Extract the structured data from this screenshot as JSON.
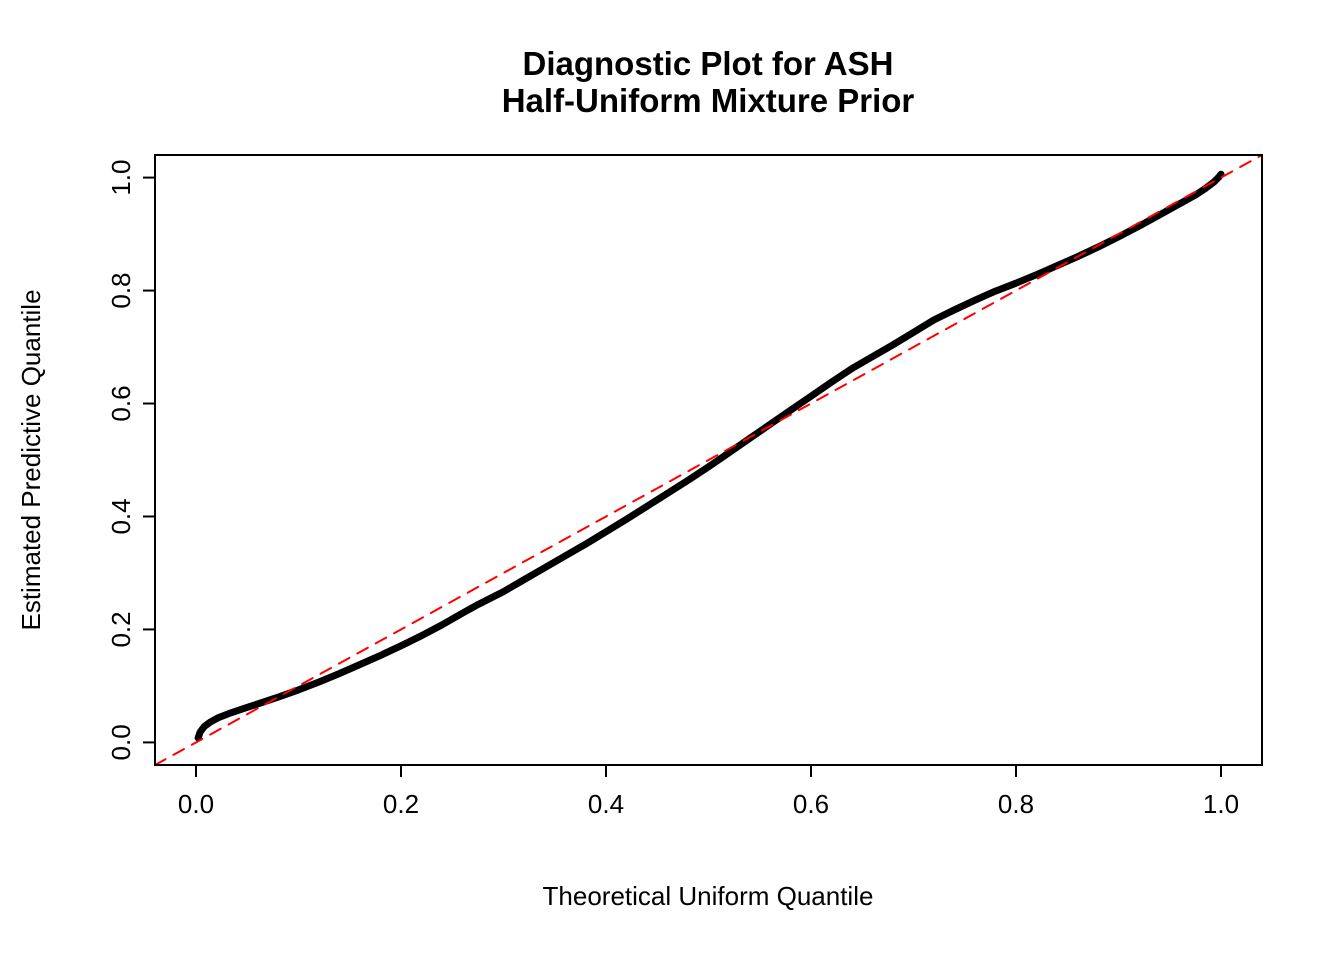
{
  "title": {
    "line1": "Diagnostic Plot for ASH",
    "line2": "Half-Uniform Mixture Prior"
  },
  "chart_data": {
    "type": "line",
    "title": "Diagnostic Plot for ASH\nHalf-Uniform Mixture Prior",
    "xlabel": "Theoretical Uniform Quantile",
    "ylabel": "Estimated Predictive Quantile",
    "xlim": [
      -0.04,
      1.04
    ],
    "ylim": [
      -0.04,
      1.04
    ],
    "grid": false,
    "legend": "none",
    "x_ticks": {
      "values": [
        0.0,
        0.2,
        0.4,
        0.6,
        0.8,
        1.0
      ],
      "labels": [
        "0.0",
        "0.2",
        "0.4",
        "0.6",
        "0.8",
        "1.0"
      ]
    },
    "y_ticks": {
      "values": [
        0.0,
        0.2,
        0.4,
        0.6,
        0.8,
        1.0
      ],
      "labels": [
        "0.0",
        "0.2",
        "0.4",
        "0.6",
        "0.8",
        "1.0"
      ]
    },
    "series": [
      {
        "name": "estimated-predictive-quantile-curve",
        "color": "#000000",
        "style": "solid",
        "width": 7,
        "points": [
          [
            0.002,
            0.008
          ],
          [
            0.004,
            0.018
          ],
          [
            0.008,
            0.028
          ],
          [
            0.014,
            0.036
          ],
          [
            0.022,
            0.044
          ],
          [
            0.032,
            0.051
          ],
          [
            0.045,
            0.059
          ],
          [
            0.06,
            0.068
          ],
          [
            0.08,
            0.08
          ],
          [
            0.1,
            0.093
          ],
          [
            0.12,
            0.107
          ],
          [
            0.14,
            0.122
          ],
          [
            0.16,
            0.138
          ],
          [
            0.18,
            0.154
          ],
          [
            0.2,
            0.171
          ],
          [
            0.22,
            0.189
          ],
          [
            0.24,
            0.208
          ],
          [
            0.26,
            0.229
          ],
          [
            0.275,
            0.244
          ],
          [
            0.3,
            0.267
          ],
          [
            0.32,
            0.288
          ],
          [
            0.34,
            0.309
          ],
          [
            0.36,
            0.33
          ],
          [
            0.38,
            0.351
          ],
          [
            0.4,
            0.373
          ],
          [
            0.42,
            0.395
          ],
          [
            0.44,
            0.418
          ],
          [
            0.46,
            0.441
          ],
          [
            0.48,
            0.464
          ],
          [
            0.5,
            0.488
          ],
          [
            0.52,
            0.513
          ],
          [
            0.54,
            0.538
          ],
          [
            0.56,
            0.563
          ],
          [
            0.58,
            0.588
          ],
          [
            0.6,
            0.613
          ],
          [
            0.62,
            0.638
          ],
          [
            0.64,
            0.662
          ],
          [
            0.66,
            0.683
          ],
          [
            0.68,
            0.704
          ],
          [
            0.7,
            0.726
          ],
          [
            0.72,
            0.748
          ],
          [
            0.74,
            0.766
          ],
          [
            0.76,
            0.783
          ],
          [
            0.78,
            0.799
          ],
          [
            0.8,
            0.813
          ],
          [
            0.82,
            0.828
          ],
          [
            0.84,
            0.844
          ],
          [
            0.86,
            0.86
          ],
          [
            0.88,
            0.877
          ],
          [
            0.9,
            0.895
          ],
          [
            0.92,
            0.914
          ],
          [
            0.94,
            0.934
          ],
          [
            0.96,
            0.954
          ],
          [
            0.975,
            0.969
          ],
          [
            0.985,
            0.981
          ],
          [
            0.993,
            0.992
          ],
          [
            0.998,
            1.001
          ],
          [
            1.0,
            1.006
          ]
        ]
      },
      {
        "name": "identity-reference-line",
        "color": "#ff0000",
        "style": "dashed",
        "width": 2,
        "points": [
          [
            -0.04,
            -0.04
          ],
          [
            1.04,
            1.04
          ]
        ]
      }
    ]
  },
  "colors": {
    "background": "#ffffff",
    "box": "#000000",
    "curve": "#000000",
    "reference": "#ff0000"
  }
}
